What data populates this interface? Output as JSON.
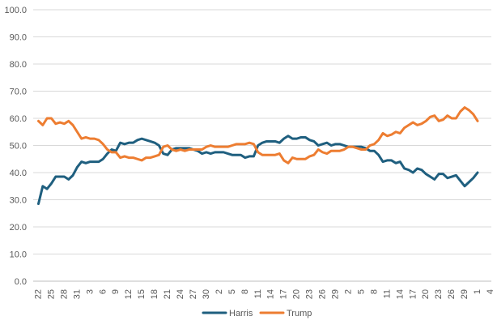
{
  "chart_data": {
    "type": "line",
    "title": "",
    "xlabel": "",
    "ylabel": "",
    "ylim": [
      0,
      100
    ],
    "ytick_step": 10,
    "ytick_labels": [
      "0.0",
      "10.0",
      "20.0",
      "30.0",
      "40.0",
      "50.0",
      "60.0",
      "70.0",
      "80.0",
      "90.0",
      "100.0"
    ],
    "grid": "horizontal",
    "legend": "bottom-center",
    "x_tick_labels": [
      "22",
      "25",
      "28",
      "31",
      "3",
      "6",
      "9",
      "12",
      "15",
      "18",
      "21",
      "24",
      "27",
      "30",
      "2",
      "5",
      "8",
      "11",
      "14",
      "17",
      "20",
      "23",
      "26",
      "29",
      "2",
      "5",
      "8",
      "11",
      "14",
      "17",
      "20",
      "23",
      "26",
      "29",
      "1",
      "4"
    ],
    "series": [
      {
        "name": "Harris",
        "color": "#1f5f7f",
        "values": [
          28.5,
          35,
          34,
          36,
          38.5,
          38.5,
          38.5,
          37.5,
          39,
          42,
          44,
          43.5,
          44,
          44,
          44,
          45,
          47,
          48.5,
          48,
          51,
          50.5,
          51,
          51,
          52,
          52.5,
          52,
          51.5,
          51,
          50,
          47,
          46.5,
          48.5,
          49,
          49,
          49,
          49,
          48.5,
          48,
          47,
          47.5,
          47,
          47.5,
          47.5,
          47.5,
          47,
          46.5,
          46.5,
          46.5,
          45.5,
          46,
          46,
          50,
          51,
          51.5,
          51.5,
          51.5,
          51,
          52.5,
          53.5,
          52.5,
          52.5,
          53,
          53,
          52,
          51.5,
          50,
          50.5,
          51,
          50,
          50.5,
          50.5,
          50,
          49.5,
          49.5,
          49.5,
          49.5,
          49,
          48,
          48,
          46.5,
          44,
          44.5,
          44.5,
          43.5,
          44,
          41.5,
          41,
          40,
          41.5,
          41,
          39.5,
          38.5,
          37.5,
          39.5,
          39.5,
          38,
          38.5,
          39,
          37,
          35,
          36.5,
          38,
          40
        ]
      },
      {
        "name": "Trump",
        "color": "#ed7d31",
        "values": [
          59,
          57.5,
          60,
          60,
          58,
          58.5,
          58,
          59,
          57.5,
          55,
          52.5,
          53,
          52.5,
          52.5,
          52,
          50.5,
          48.5,
          47.5,
          47.5,
          45.5,
          46,
          45.5,
          45.5,
          45,
          44.5,
          45.5,
          45.5,
          46,
          46.5,
          49.5,
          50,
          48.5,
          48,
          48.5,
          48,
          48.5,
          48.5,
          48.5,
          48.5,
          49.5,
          50,
          49.5,
          49.5,
          49.5,
          49.5,
          50,
          50.5,
          50.5,
          50.5,
          51,
          50.5,
          47.5,
          46.5,
          46.5,
          46.5,
          46.5,
          47,
          44.5,
          43.5,
          45.5,
          45,
          45,
          45,
          46,
          46.5,
          48.5,
          47.5,
          47,
          48,
          48,
          48,
          48.5,
          49.5,
          49.5,
          49,
          48.5,
          48.5,
          50,
          50.5,
          52,
          54.5,
          53.5,
          54,
          55,
          54.5,
          56.5,
          57.5,
          58.5,
          57.5,
          58,
          59,
          60.5,
          61,
          59,
          59.5,
          61,
          60,
          60,
          62.5,
          64,
          63,
          61.5,
          59
        ]
      }
    ]
  }
}
